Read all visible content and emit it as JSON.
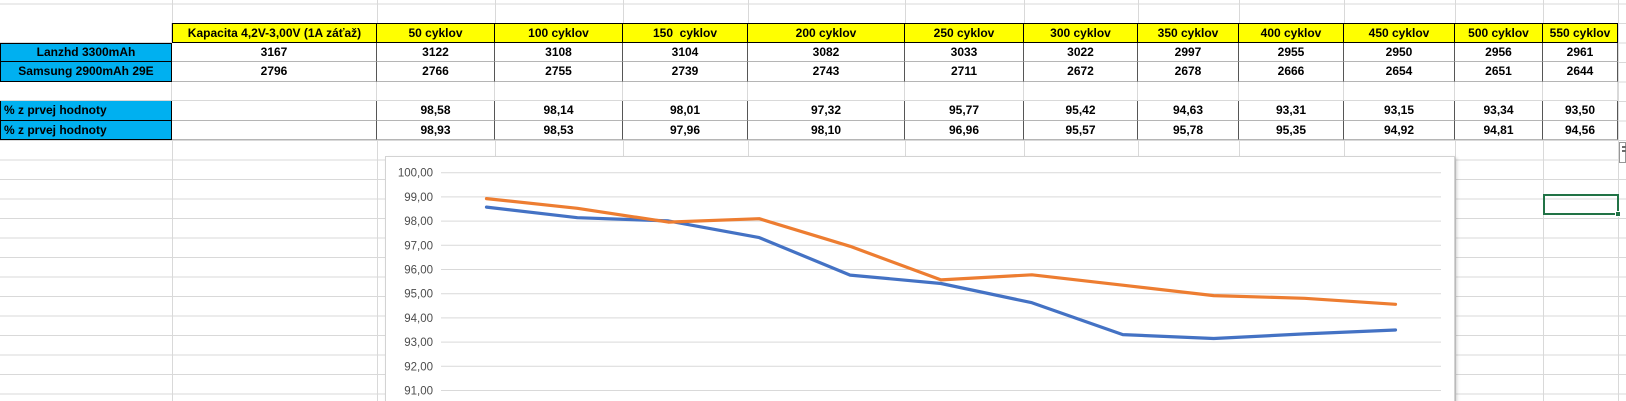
{
  "table": {
    "corner_header": "",
    "header_row": [
      "Kapacita 4,2V-3,00V (1A záťaž)",
      "50 cyklov",
      "100 cyklov",
      "150  cyklov",
      "200 cyklov",
      "250 cyklov",
      "300 cyklov",
      "350 cyklov",
      "400 cyklov",
      "450 cyklov",
      "500 cyklov",
      "550 cyklov"
    ],
    "battery_rows": [
      {
        "label": "Lanzhd 3300mAh",
        "values": [
          "3167",
          "3122",
          "3108",
          "3104",
          "3082",
          "3033",
          "3022",
          "2997",
          "2955",
          "2950",
          "2956",
          "2961"
        ]
      },
      {
        "label": "Samsung 2900mAh 29E",
        "values": [
          "2796",
          "2766",
          "2755",
          "2739",
          "2743",
          "2711",
          "2672",
          "2678",
          "2666",
          "2654",
          "2651",
          "2644"
        ]
      }
    ],
    "percent_rows": [
      {
        "label": "% z prvej hodnoty",
        "values": [
          "",
          "98,58",
          "98,14",
          "98,01",
          "97,32",
          "95,77",
          "95,42",
          "94,63",
          "93,31",
          "93,15",
          "93,34",
          "93,50"
        ]
      },
      {
        "label": "% z prvej hodnoty",
        "values": [
          "",
          "98,93",
          "98,53",
          "97,96",
          "98,10",
          "96,96",
          "95,57",
          "95,78",
          "95,35",
          "94,92",
          "94,81",
          "94,56"
        ]
      }
    ]
  },
  "chart_data": {
    "type": "line",
    "title": "",
    "xlabel": "",
    "ylabel": "",
    "categories": [
      50,
      100,
      150,
      200,
      250,
      300,
      350,
      400,
      450,
      500,
      550
    ],
    "series": [
      {
        "name": "Lanzhd 3300mAh",
        "color": "#4472C4",
        "values": [
          98.58,
          98.14,
          98.01,
          97.32,
          95.77,
          95.42,
          94.63,
          93.31,
          93.15,
          93.34,
          93.5
        ]
      },
      {
        "name": "Samsung 2900mAh 29E",
        "color": "#ED7D31",
        "values": [
          98.93,
          98.53,
          97.96,
          98.1,
          96.96,
          95.57,
          95.78,
          95.35,
          94.92,
          94.81,
          94.56
        ]
      }
    ],
    "y_ticks": [
      "100,00",
      "99,00",
      "98,00",
      "97,00",
      "96,00",
      "95,00",
      "94,00",
      "93,00",
      "92,00",
      "91,00"
    ],
    "ylim_visible": [
      91,
      100
    ],
    "grid": true,
    "legend": "none"
  },
  "colors": {
    "header_fill": "#FFFF00",
    "label_fill": "#00B0F0",
    "chart_line_blue": "#4472C4",
    "chart_line_orange": "#ED7D31",
    "selection_green": "#217346",
    "sheet_gridline": "#D9D9D9"
  }
}
